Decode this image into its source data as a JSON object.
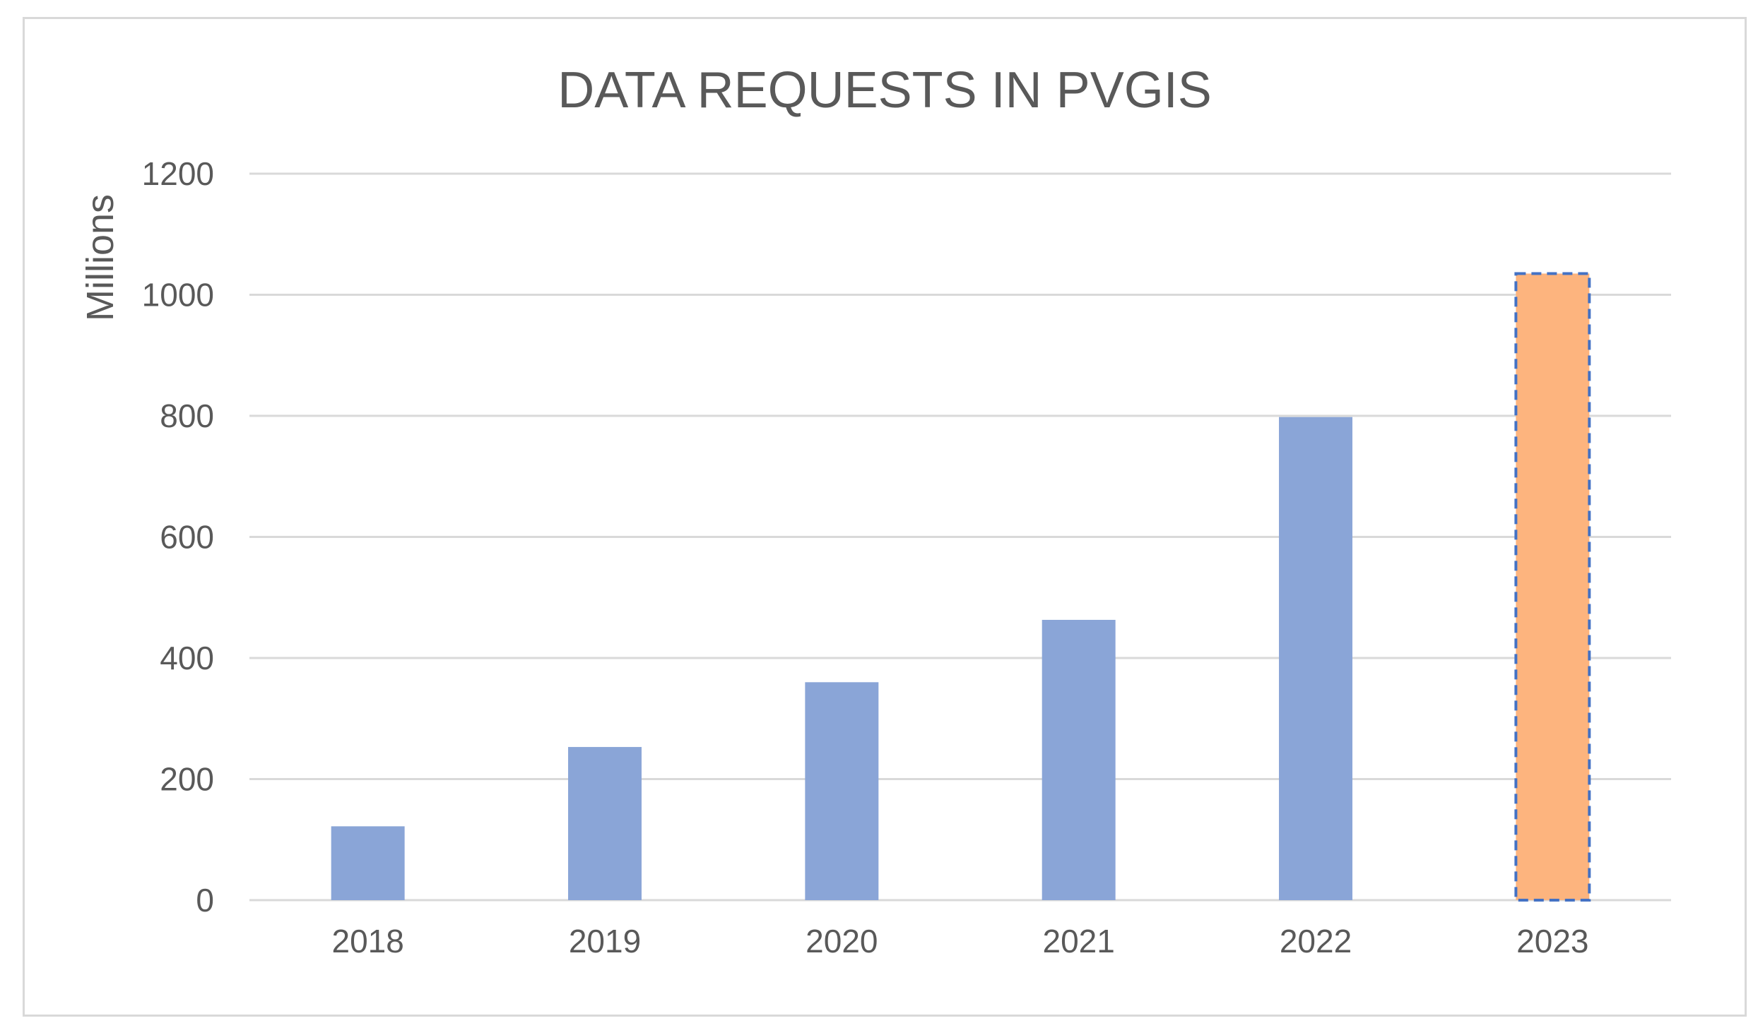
{
  "chart_data": {
    "type": "bar",
    "title": "DATA REQUESTS IN PVGIS",
    "xlabel": "",
    "ylabel": "Millions",
    "categories": [
      "2018",
      "2019",
      "2020",
      "2021",
      "2022",
      "2023"
    ],
    "values": [
      122,
      253,
      360,
      463,
      798,
      1035
    ],
    "ylim": [
      0,
      1200
    ],
    "yticks": [
      0,
      200,
      400,
      600,
      800,
      1000,
      1200
    ],
    "grid": true,
    "colors": {
      "bar": "#8aa5d7",
      "highlight_bar": "#fdb47e",
      "highlight_border": "#4472c4",
      "gridline": "#d9d9d9",
      "text": "#595959"
    },
    "highlight_index": 5
  }
}
